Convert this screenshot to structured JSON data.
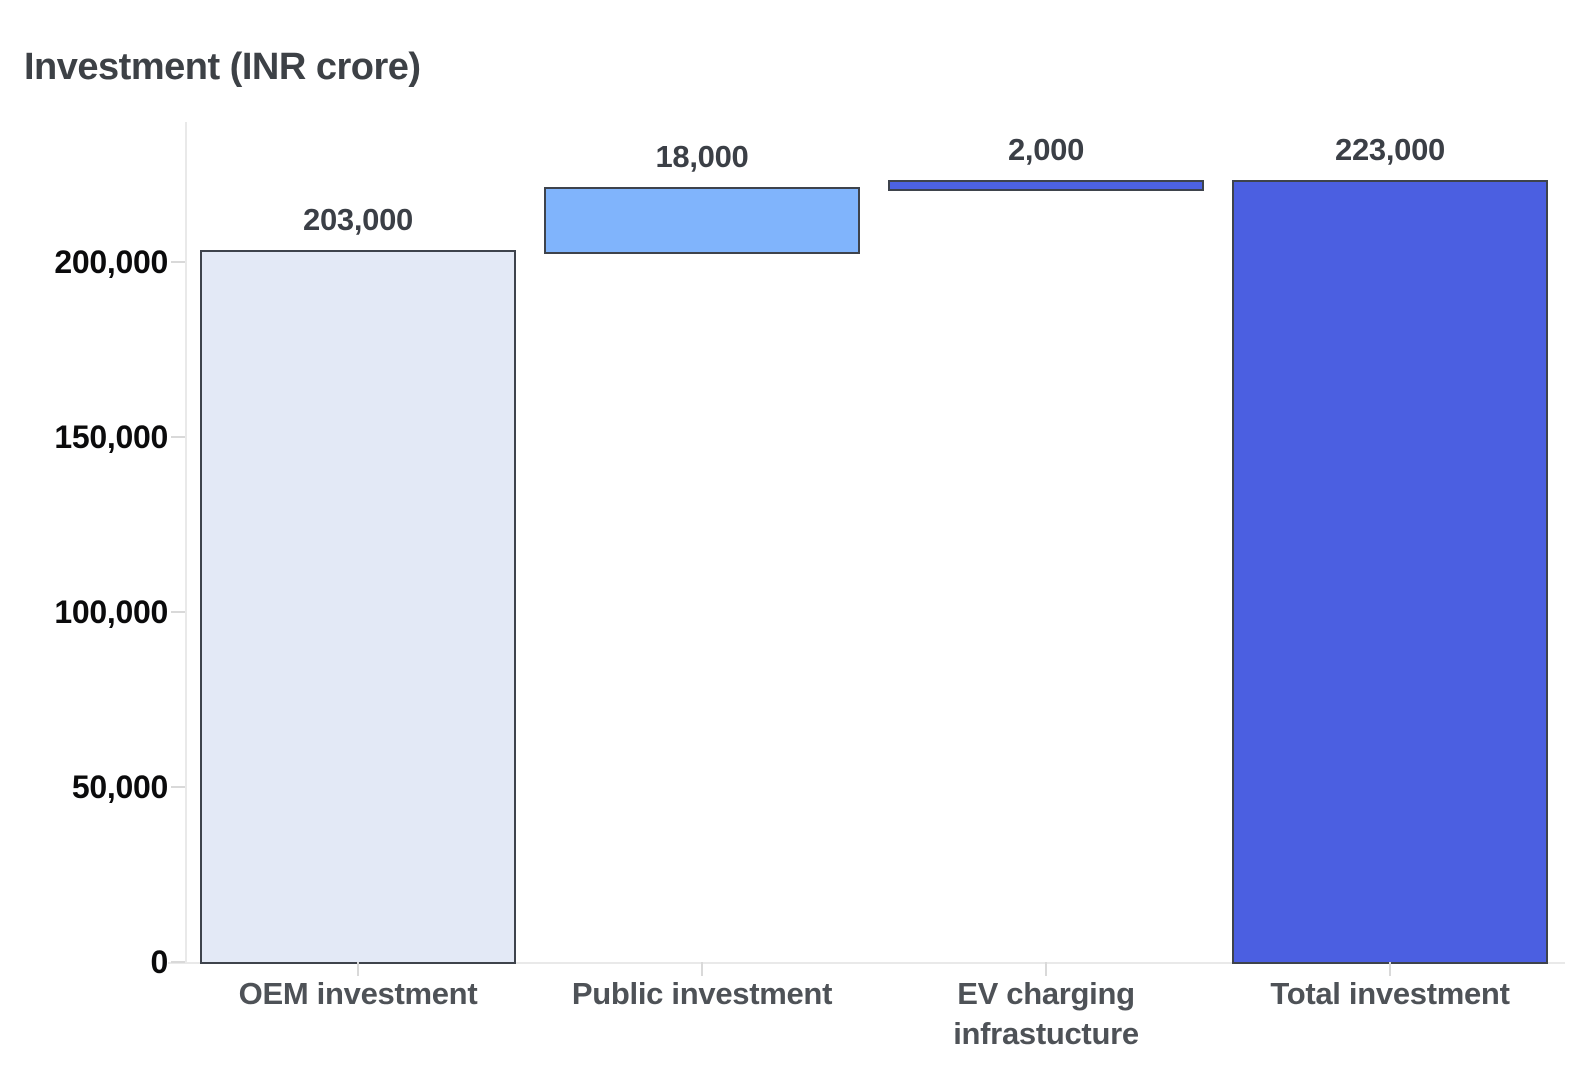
{
  "title": "Investment (INR crore)",
  "chart_data": {
    "type": "bar",
    "subtype": "waterfall",
    "title": "Investment (INR crore)",
    "categories": [
      "OEM investment",
      "Public investment",
      "EV charging\ninfrastucture",
      "Total investment"
    ],
    "values": [
      203000,
      18000,
      2000,
      223000
    ],
    "bases": [
      0,
      203000,
      221000,
      0
    ],
    "value_labels": [
      "203,000",
      "18,000",
      "2,000",
      "223,000"
    ],
    "series": [
      {
        "name": "Investment",
        "values": [
          203000,
          18000,
          2000,
          223000
        ]
      }
    ],
    "xlabel": "",
    "ylabel": "",
    "ylim": [
      0,
      240000
    ],
    "yticks": [
      {
        "value": 0,
        "label": "0"
      },
      {
        "value": 50000,
        "label": "50,000"
      },
      {
        "value": 100000,
        "label": "100,000"
      },
      {
        "value": 150000,
        "label": "150,000"
      },
      {
        "value": 200000,
        "label": "200,000"
      }
    ],
    "grid": false,
    "legend": false,
    "bar_colors": [
      "#e3e9f6",
      "#80b4fc",
      "#4c62e3",
      "#4b5fe1"
    ],
    "bar_border_color": "#3e434c",
    "axis_color": "#e9e9e9",
    "tick_color": "#d9d9d9",
    "title_color": "#3d4146",
    "value_label_color": "#3b3f46",
    "category_label_color": "#4e5257",
    "ytick_label_color": "#0b0b0c"
  }
}
